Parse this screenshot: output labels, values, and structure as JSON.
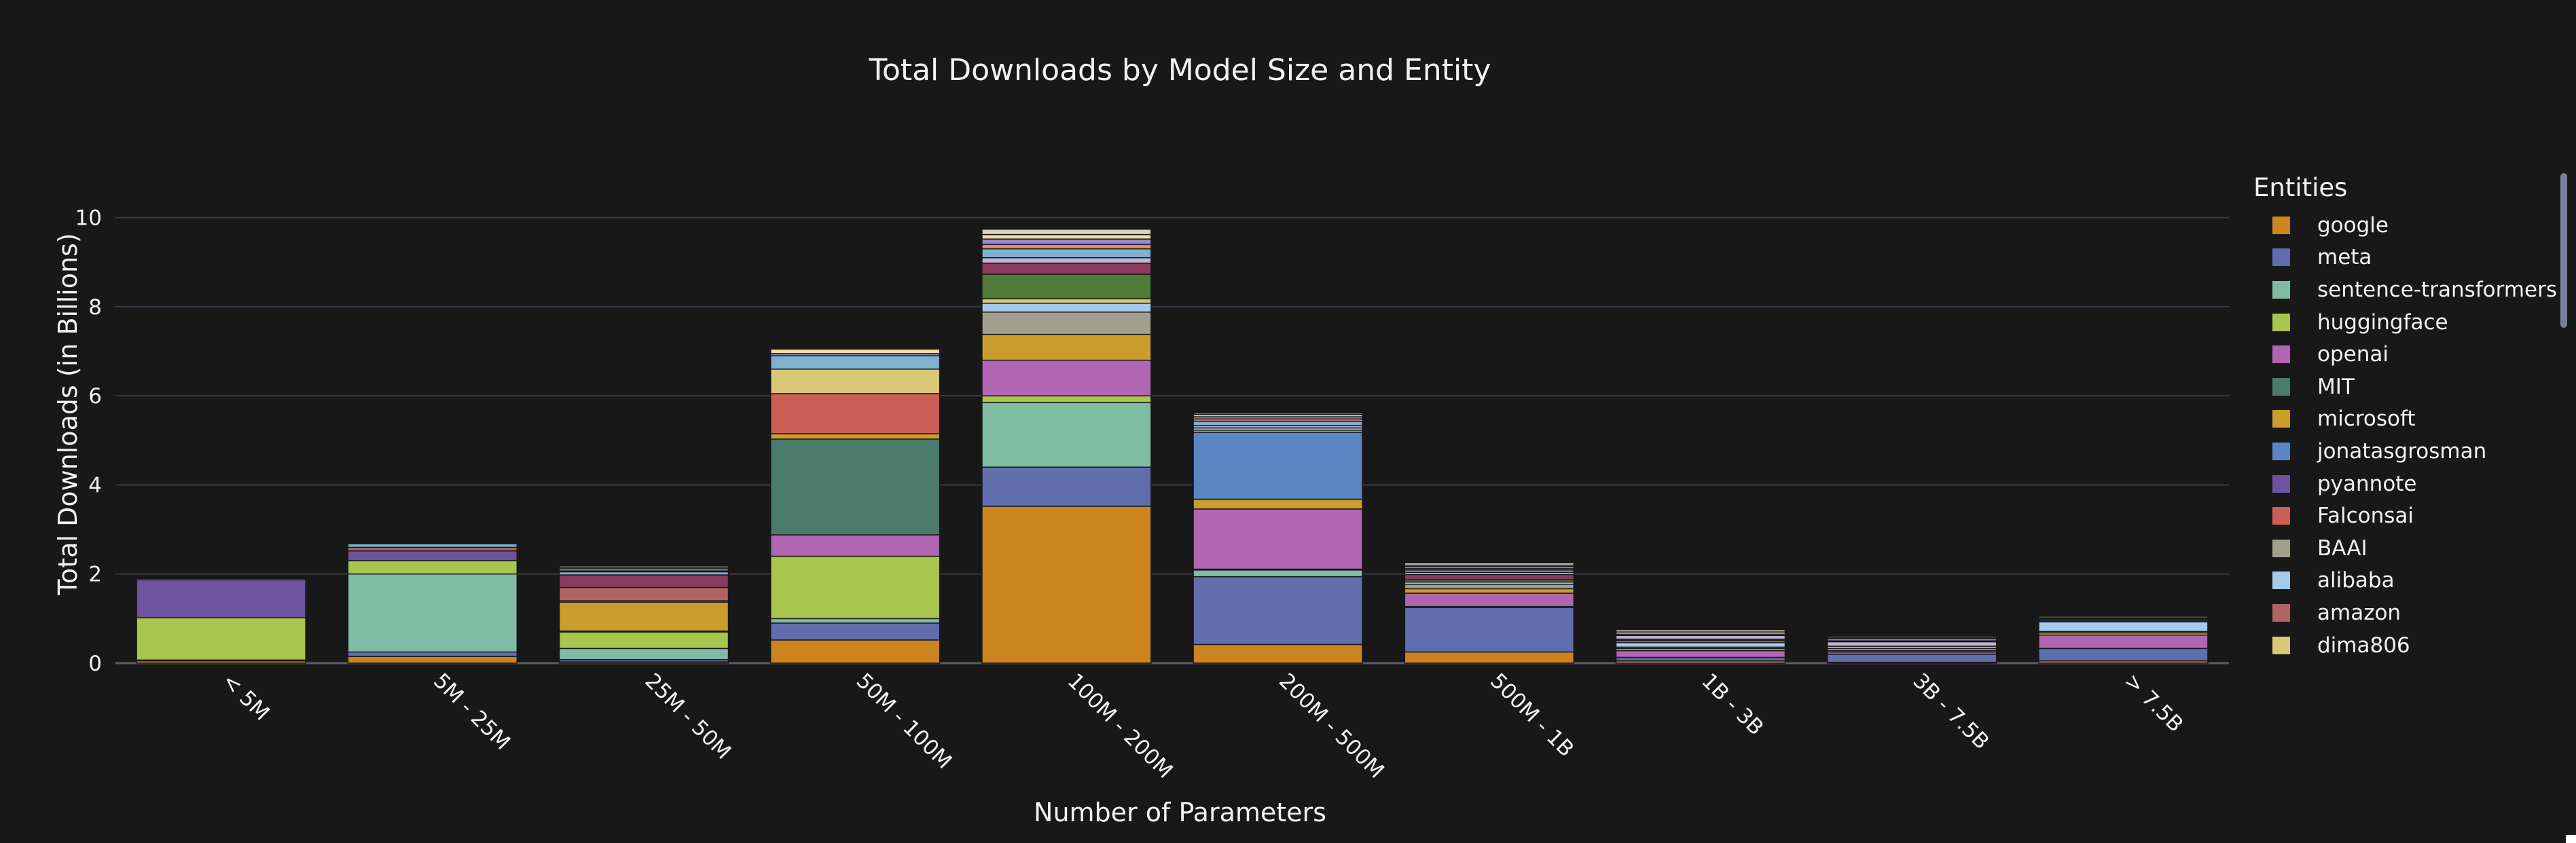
{
  "chart_data": {
    "type": "bar",
    "barmode": "stack",
    "title": "Total Downloads by Model Size and Entity",
    "xlabel": "Number of Parameters",
    "ylabel": "Total Downloads (in Billions)",
    "ylim": [
      0,
      11
    ],
    "yticks": [
      0,
      2,
      4,
      6,
      8,
      10
    ],
    "grid": true,
    "legend": {
      "title": "Entities",
      "placement": "right"
    },
    "categories": [
      "< 5M",
      "5M - 25M",
      "25M - 50M",
      "50M - 100M",
      "100M - 200M",
      "200M - 500M",
      "500M - 1B",
      "1B - 3B",
      "3B - 7.5B",
      "> 7.5B"
    ],
    "series": [
      {
        "name": "google",
        "color": "#cc8420",
        "values": [
          0.05,
          0.15,
          0.03,
          0.52,
          3.52,
          0.42,
          0.25,
          0.05,
          0.02,
          0.05
        ]
      },
      {
        "name": "meta",
        "color": "#616eae",
        "values": [
          0.02,
          0.1,
          0.05,
          0.38,
          0.88,
          1.52,
          1.0,
          0.08,
          0.18,
          0.28
        ]
      },
      {
        "name": "sentence-transformers",
        "color": "#80bca4",
        "values": [
          0.0,
          1.75,
          0.25,
          0.1,
          1.45,
          0.15,
          0.0,
          0.0,
          0.0,
          0.0
        ]
      },
      {
        "name": "huggingface",
        "color": "#a8c54e",
        "values": [
          0.95,
          0.3,
          0.37,
          1.4,
          0.15,
          0.02,
          0.02,
          0.0,
          0.0,
          0.0
        ]
      },
      {
        "name": "openai",
        "color": "#b066b2",
        "values": [
          0.0,
          0.0,
          0.02,
          0.48,
          0.8,
          1.35,
          0.3,
          0.15,
          0.05,
          0.3
        ]
      },
      {
        "name": "MIT",
        "color": "#4b7b6a",
        "values": [
          0.0,
          0.0,
          0.0,
          2.15,
          0.0,
          0.0,
          0.0,
          0.0,
          0.0,
          0.0
        ]
      },
      {
        "name": "microsoft",
        "color": "#ca9d2c",
        "values": [
          0.0,
          0.0,
          0.65,
          0.12,
          0.58,
          0.22,
          0.1,
          0.05,
          0.03,
          0.05
        ]
      },
      {
        "name": "jonatasgrosman",
        "color": "#5a87c3",
        "values": [
          0.0,
          0.0,
          0.0,
          0.0,
          0.0,
          1.5,
          0.0,
          0.0,
          0.0,
          0.0
        ]
      },
      {
        "name": "pyannote",
        "color": "#6e549e",
        "values": [
          0.85,
          0.22,
          0.0,
          0.0,
          0.0,
          0.0,
          0.0,
          0.0,
          0.0,
          0.0
        ]
      },
      {
        "name": "Falconsai",
        "color": "#cb5f55",
        "values": [
          0.0,
          0.0,
          0.0,
          0.9,
          0.0,
          0.0,
          0.0,
          0.0,
          0.0,
          0.0
        ]
      },
      {
        "name": "BAAI",
        "color": "#a0a08c",
        "values": [
          0.0,
          0.0,
          0.03,
          0.0,
          0.5,
          0.05,
          0.1,
          0.03,
          0.05,
          0.03
        ]
      },
      {
        "name": "alibaba",
        "color": "#a4cbec",
        "values": [
          0.0,
          0.0,
          0.0,
          0.0,
          0.2,
          0.05,
          0.05,
          0.1,
          0.05,
          0.22
        ]
      },
      {
        "name": "amazon",
        "color": "#b06464",
        "values": [
          0.03,
          0.08,
          0.3,
          0.0,
          0.0,
          0.0,
          0.0,
          0.05,
          0.0,
          0.0
        ]
      },
      {
        "name": "dima806",
        "color": "#d8c877",
        "values": [
          0.0,
          0.0,
          0.0,
          0.55,
          0.1,
          0.0,
          0.0,
          0.0,
          0.0,
          0.0
        ]
      },
      {
        "name": "",
        "color": "#4f7a38",
        "values": [
          0.0,
          0.0,
          0.0,
          0.0,
          0.55,
          0.0,
          0.05,
          0.0,
          0.0,
          0.0
        ]
      },
      {
        "name": "",
        "color": "#8a3b5e",
        "values": [
          0.0,
          0.0,
          0.28,
          0.0,
          0.25,
          0.0,
          0.12,
          0.03,
          0.0,
          0.02
        ]
      },
      {
        "name": "",
        "color": "#c2b4da",
        "values": [
          0.0,
          0.0,
          0.0,
          0.0,
          0.12,
          0.05,
          0.05,
          0.08,
          0.1,
          0.03
        ]
      },
      {
        "name": "",
        "color": "#7fb2cf",
        "values": [
          0.0,
          0.08,
          0.07,
          0.3,
          0.2,
          0.1,
          0.05,
          0.0,
          0.02,
          0.0
        ]
      },
      {
        "name": "",
        "color": "#e28b73",
        "values": [
          0.0,
          0.02,
          0.02,
          0.0,
          0.1,
          0.05,
          0.03,
          0.0,
          0.0,
          0.02
        ]
      },
      {
        "name": "",
        "color": "#9a8bd0",
        "values": [
          0.0,
          0.0,
          0.05,
          0.05,
          0.12,
          0.05,
          0.05,
          0.03,
          0.05,
          0.02
        ]
      },
      {
        "name": "",
        "color": "#f0e29a",
        "values": [
          0.0,
          0.0,
          0.03,
          0.1,
          0.1,
          0.05,
          0.03,
          0.05,
          0.02,
          0.0
        ]
      },
      {
        "name": "",
        "color": "#d9d2c5",
        "values": [
          0.0,
          0.0,
          0.03,
          0.0,
          0.12,
          0.03,
          0.05,
          0.05,
          0.03,
          0.03
        ]
      }
    ]
  }
}
